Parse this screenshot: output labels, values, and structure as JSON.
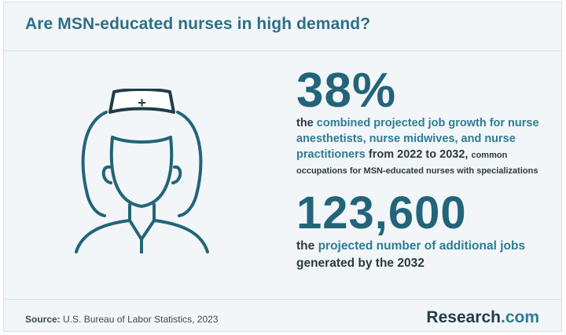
{
  "header": {
    "title": "Are MSN-educated nurses in high demand?"
  },
  "illustration": {
    "icon": "nurse-icon",
    "cap_symbol": "+"
  },
  "stat_one": {
    "value": "38%",
    "lead": "the",
    "highlight": "combined projected job growth for nurse anesthetists, nurse midwives, and nurse practitioners",
    "middle": "from 2022 to 2032,",
    "small": "common occupations for MSN-educated nurses with specializations"
  },
  "stat_two": {
    "value": "123,600",
    "lead": "the",
    "highlight": "projected number of additional jobs",
    "tail": "generated by the 2032"
  },
  "footer": {
    "source_label": "Source:",
    "source_text": "U.S. Bureau of Labor Statistics, 2023",
    "brand_name": "Research",
    "brand_tld": ".com"
  },
  "colors": {
    "accent": "#2f7c93",
    "stat": "#23647a",
    "background": "#f2f6f8"
  }
}
